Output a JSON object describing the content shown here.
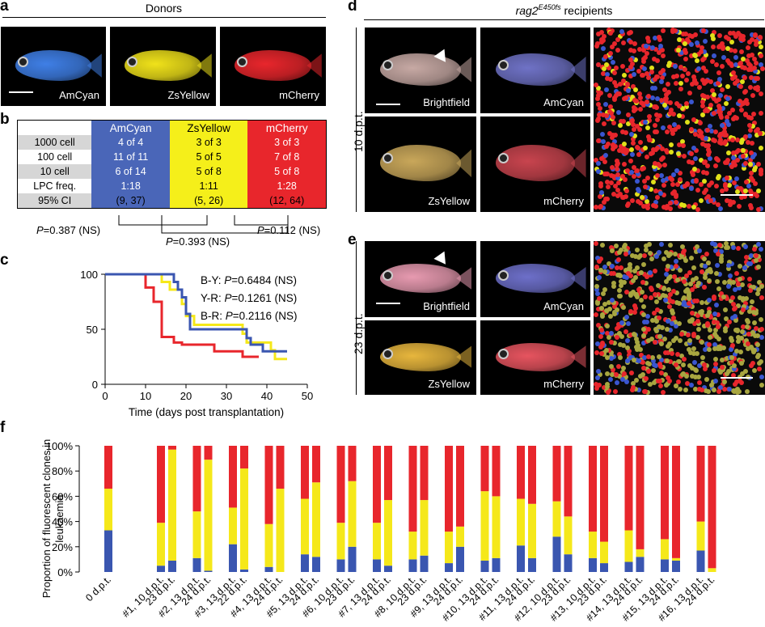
{
  "panel_letters": {
    "a": "a",
    "b": "b",
    "c": "c",
    "d": "d",
    "e": "e",
    "f": "f"
  },
  "panel_a": {
    "header": "Donors",
    "photos": [
      {
        "label": "AmCyan",
        "color": "#3f7fe6"
      },
      {
        "label": "ZsYellow",
        "color": "#f0e21a"
      },
      {
        "label": "mCherry",
        "color": "#e8262c"
      }
    ]
  },
  "panel_b": {
    "columns": [
      "AmCyan",
      "ZsYellow",
      "mCherry"
    ],
    "column_colors": [
      "#4a66b8",
      "#f5ef1a",
      "#e8262c"
    ],
    "rows": [
      {
        "label": "1000 cell",
        "values": [
          "4 of 4",
          "3 of 3",
          "3 of 3"
        ]
      },
      {
        "label": "100 cell",
        "values": [
          "11 of 11",
          "5 of 5",
          "7 of 8"
        ]
      },
      {
        "label": "10 cell",
        "values": [
          "6 of 14",
          "5 of 8",
          "5 of 8"
        ]
      },
      {
        "label": "LPC freq.",
        "values": [
          "1:18",
          "1:11",
          "1:28"
        ]
      },
      {
        "label": "95% CI",
        "values": [
          "(9, 37)",
          "(5, 26)",
          "(12, 64)"
        ]
      }
    ],
    "pvalues": [
      {
        "p": "P",
        "text": "=0.387 (NS)"
      },
      {
        "p": "P",
        "text": "=0.393 (NS)"
      },
      {
        "p": "P",
        "text": "=0.112 (NS)"
      }
    ]
  },
  "panel_c": {
    "chart_data": {
      "type": "line",
      "xlabel": "Time (days post transplantation)",
      "ylabel": "",
      "xlim": [
        0,
        50
      ],
      "ylim": [
        0,
        100
      ],
      "xticks": [
        0,
        10,
        20,
        30,
        40,
        50
      ],
      "yticks": [
        0,
        50,
        100
      ],
      "annotations": [
        {
          "pair": "B-Y: ",
          "p": "P",
          "text": "=0.6484 (NS)"
        },
        {
          "pair": "Y-R: ",
          "p": "P",
          "text": "=0.1261 (NS)"
        },
        {
          "pair": "B-R: ",
          "p": "P",
          "text": "=0.2116 (NS)"
        }
      ],
      "series": [
        {
          "color": "#f5e81a",
          "steps": [
            [
              0,
              100
            ],
            [
              14,
              100
            ],
            [
              14,
              93
            ],
            [
              16,
              93
            ],
            [
              16,
              86
            ],
            [
              19,
              86
            ],
            [
              19,
              73
            ],
            [
              20,
              73
            ],
            [
              20,
              62
            ],
            [
              22,
              62
            ],
            [
              22,
              54
            ],
            [
              34,
              54
            ],
            [
              34,
              46
            ],
            [
              35,
              46
            ],
            [
              35,
              38
            ],
            [
              41,
              38
            ],
            [
              41,
              31
            ],
            [
              42,
              31
            ],
            [
              42,
              23
            ],
            [
              45,
              23
            ]
          ]
        },
        {
          "color": "#e8262c",
          "steps": [
            [
              0,
              100
            ],
            [
              10,
              100
            ],
            [
              10,
              88
            ],
            [
              12,
              88
            ],
            [
              12,
              75
            ],
            [
              14,
              75
            ],
            [
              14,
              43
            ],
            [
              17,
              43
            ],
            [
              17,
              38
            ],
            [
              19,
              38
            ],
            [
              19,
              36
            ],
            [
              27,
              36
            ],
            [
              27,
              30
            ],
            [
              34,
              30
            ],
            [
              34,
              25
            ],
            [
              38,
              25
            ]
          ]
        },
        {
          "color": "#3a56b0",
          "steps": [
            [
              0,
              100
            ],
            [
              17,
              100
            ],
            [
              17,
              93
            ],
            [
              18,
              93
            ],
            [
              18,
              86
            ],
            [
              19,
              86
            ],
            [
              19,
              79
            ],
            [
              20,
              79
            ],
            [
              20,
              64
            ],
            [
              21,
              64
            ],
            [
              21,
              50
            ],
            [
              35,
              50
            ],
            [
              35,
              42
            ],
            [
              36,
              42
            ],
            [
              36,
              36
            ],
            [
              39,
              36
            ],
            [
              39,
              30
            ],
            [
              45,
              30
            ]
          ]
        }
      ]
    }
  },
  "panel_d": {
    "header": "rag2",
    "header_super": "E450fs",
    "header_suffix": " recipients",
    "side_label": "10 d.p.t.",
    "photos": [
      {
        "label": "Brightfield",
        "color": "#c7a9a4"
      },
      {
        "label": "AmCyan",
        "color": "#6f72c6"
      },
      {
        "label": "ZsYellow",
        "color": "#c9a75a"
      },
      {
        "label": "mCherry",
        "color": "#c8444e"
      }
    ]
  },
  "panel_e": {
    "side_label": "23 d.p.t.",
    "photos": [
      {
        "label": "Brightfield",
        "color": "#e79ab0"
      },
      {
        "label": "AmCyan",
        "color": "#6d6fc9"
      },
      {
        "label": "ZsYellow",
        "color": "#e7b63d"
      },
      {
        "label": "mCherry",
        "color": "#e6545f"
      }
    ]
  },
  "panel_f": {
    "chart_data": {
      "type": "bar",
      "ylabel": "Proportion of fluorescent clones in leukaemia",
      "ylim": [
        0,
        100
      ],
      "yticks": [
        "0%",
        "20%",
        "40%",
        "60%",
        "80%",
        "100%"
      ],
      "series_colors": {
        "blue": "#3a56b0",
        "yellow": "#f5e81a",
        "red": "#e8262c"
      },
      "categories": [
        "0 d.p.t.",
        "#1, 10 d.p.t.",
        "23 d.p.t.",
        "#2, 13 d.p.t.",
        "24 d.p.t.",
        "#3, 13 d.p.t.",
        "22 d.p.t.",
        "#4, 13 d.p.t.",
        "24 d.p.t.",
        "#5, 13 d.p.t.",
        "24 d.p.t.",
        "#6, 10 d.p.t.",
        "23 d.p.t.",
        "#7, 13 d.p.t.",
        "24 d.p.t.",
        "#8, 10 d.p.t.",
        "23 d.p.t.",
        "#9, 13 d.p.t.",
        "24 d.p.t.",
        "#10, 13 d.p.t.",
        "24 d.p.t.",
        "#11, 13 d.p.t.",
        "24 d.p.t.",
        "#12, 10 d.p.t.",
        "23 d.p.t.",
        "#13, 10 d.p.t.",
        "23 d.p.t.",
        "#14, 13 d.p.t.",
        "24 d.p.t.",
        "#15, 13 d.p.t.",
        "24 d.p.t.",
        "#16, 13 d.p.t.",
        "24 d.p.t."
      ],
      "blue": [
        33,
        5,
        9,
        11,
        1,
        22,
        2,
        4,
        0,
        14,
        12,
        10,
        20,
        10,
        5,
        10,
        13,
        7,
        20,
        9,
        11,
        21,
        11,
        28,
        14,
        11,
        7,
        8,
        12,
        10,
        9,
        17,
        0
      ],
      "yellow": [
        33,
        34,
        88,
        37,
        88,
        29,
        80,
        34,
        66,
        44,
        59,
        29,
        52,
        29,
        52,
        22,
        44,
        25,
        16,
        55,
        49,
        37,
        43,
        28,
        30,
        21,
        17,
        25,
        6,
        16,
        2,
        23,
        3
      ],
      "red": [
        34,
        61,
        3,
        52,
        11,
        49,
        18,
        62,
        34,
        42,
        29,
        61,
        28,
        61,
        43,
        68,
        43,
        68,
        64,
        36,
        40,
        42,
        46,
        44,
        56,
        68,
        76,
        67,
        82,
        74,
        89,
        60,
        97
      ]
    }
  }
}
